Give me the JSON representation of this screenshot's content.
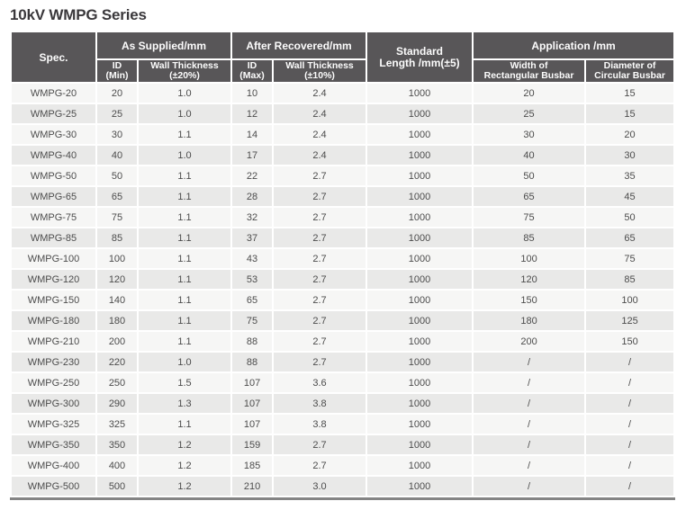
{
  "title": "10kV WMPG Series",
  "colors": {
    "header_bg": "#585658",
    "header_text": "#fcfcfc",
    "row_odd_bg": "#f6f6f5",
    "row_even_bg": "#e9e9e8",
    "body_text": "#4c4c4c",
    "title_text": "#3a383b",
    "bottom_rule": "#848484"
  },
  "table": {
    "header": {
      "spec": "Spec.",
      "group_as_supplied": "As Supplied/mm",
      "group_after_recovered": "After Recovered/mm",
      "standard_length": "Standard\nLength /mm(±5)",
      "group_application": "Application /mm",
      "id_min": "ID\n(Min)",
      "wall_thickness_20": "Wall Thickness\n(±20%)",
      "id_max": "ID\n(Max)",
      "wall_thickness_10": "Wall Thickness\n(±10%)",
      "width_rect_busbar": "Width of\nRectangular Busbar",
      "dia_circ_busbar": "Diameter of\nCircular Busbar"
    },
    "rows": [
      [
        "WMPG-20",
        "20",
        "1.0",
        "10",
        "2.4",
        "1000",
        "20",
        "15"
      ],
      [
        "WMPG-25",
        "25",
        "1.0",
        "12",
        "2.4",
        "1000",
        "25",
        "15"
      ],
      [
        "WMPG-30",
        "30",
        "1.1",
        "14",
        "2.4",
        "1000",
        "30",
        "20"
      ],
      [
        "WMPG-40",
        "40",
        "1.0",
        "17",
        "2.4",
        "1000",
        "40",
        "30"
      ],
      [
        "WMPG-50",
        "50",
        "1.1",
        "22",
        "2.7",
        "1000",
        "50",
        "35"
      ],
      [
        "WMPG-65",
        "65",
        "1.1",
        "28",
        "2.7",
        "1000",
        "65",
        "45"
      ],
      [
        "WMPG-75",
        "75",
        "1.1",
        "32",
        "2.7",
        "1000",
        "75",
        "50"
      ],
      [
        "WMPG-85",
        "85",
        "1.1",
        "37",
        "2.7",
        "1000",
        "85",
        "65"
      ],
      [
        "WMPG-100",
        "100",
        "1.1",
        "43",
        "2.7",
        "1000",
        "100",
        "75"
      ],
      [
        "WMPG-120",
        "120",
        "1.1",
        "53",
        "2.7",
        "1000",
        "120",
        "85"
      ],
      [
        "WMPG-150",
        "140",
        "1.1",
        "65",
        "2.7",
        "1000",
        "150",
        "100"
      ],
      [
        "WMPG-180",
        "180",
        "1.1",
        "75",
        "2.7",
        "1000",
        "180",
        "125"
      ],
      [
        "WMPG-210",
        "200",
        "1.1",
        "88",
        "2.7",
        "1000",
        "200",
        "150"
      ],
      [
        "WMPG-230",
        "220",
        "1.0",
        "88",
        "2.7",
        "1000",
        "/",
        "/"
      ],
      [
        "WMPG-250",
        "250",
        "1.5",
        "107",
        "3.6",
        "1000",
        "/",
        "/"
      ],
      [
        "WMPG-300",
        "290",
        "1.3",
        "107",
        "3.8",
        "1000",
        "/",
        "/"
      ],
      [
        "WMPG-325",
        "325",
        "1.1",
        "107",
        "3.8",
        "1000",
        "/",
        "/"
      ],
      [
        "WMPG-350",
        "350",
        "1.2",
        "159",
        "2.7",
        "1000",
        "/",
        "/"
      ],
      [
        "WMPG-400",
        "400",
        "1.2",
        "185",
        "2.7",
        "1000",
        "/",
        "/"
      ],
      [
        "WMPG-500",
        "500",
        "1.2",
        "210",
        "3.0",
        "1000",
        "/",
        "/"
      ]
    ]
  }
}
